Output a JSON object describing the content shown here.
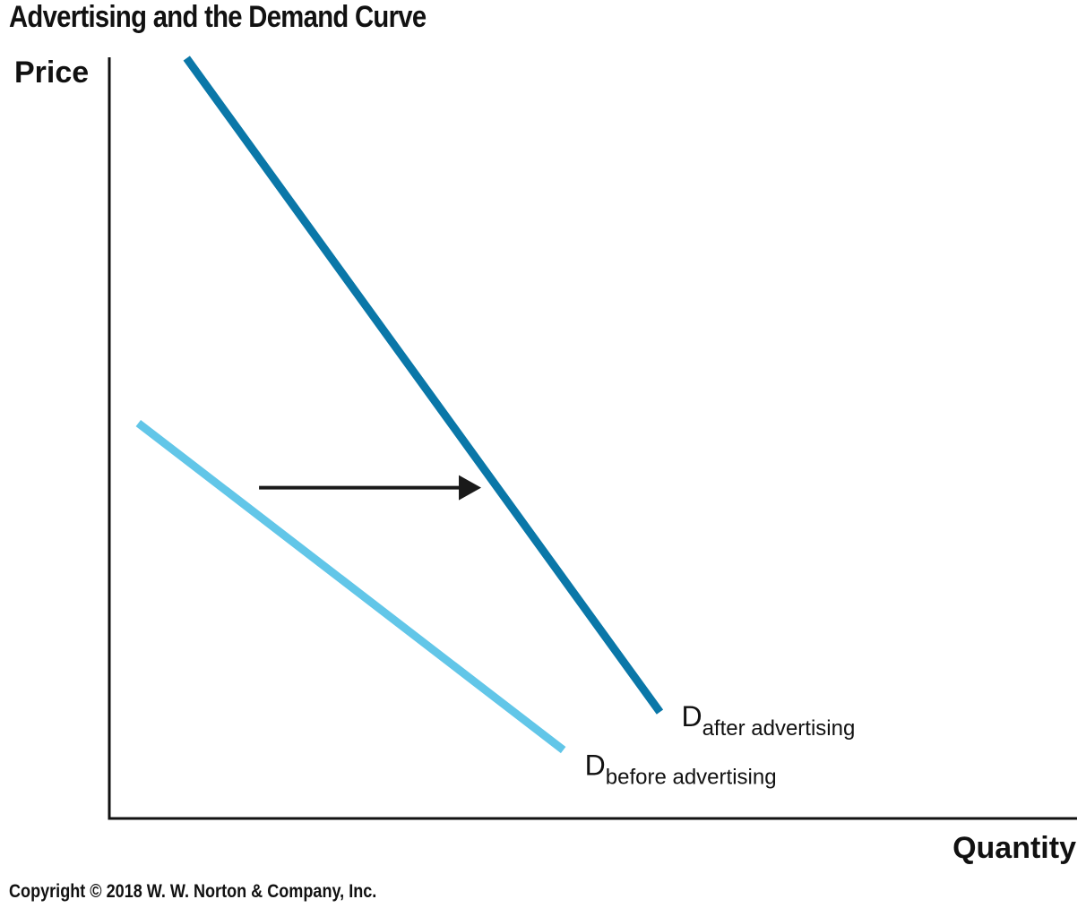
{
  "chart_data": {
    "type": "line",
    "title": "Advertising and the Demand Curve",
    "xlabel": "Quantity",
    "ylabel": "Price",
    "grid": false,
    "series": [
      {
        "name": "D_before advertising",
        "label_main": "D",
        "label_sub": "before advertising",
        "color": "#62c6e8",
        "points": [
          [
            0.03,
            0.52
          ],
          [
            0.47,
            0.09
          ]
        ]
      },
      {
        "name": "D_after advertising",
        "label_main": "D",
        "label_sub": "after advertising",
        "color": "#0a77a8",
        "points": [
          [
            0.08,
            1.0
          ],
          [
            0.57,
            0.14
          ]
        ]
      }
    ],
    "annotations": [
      {
        "type": "arrow",
        "direction": "right",
        "description": "demand shifts right",
        "from": [
          0.155,
          0.435
        ],
        "to": [
          0.385,
          0.435
        ]
      }
    ]
  },
  "copyright": "Copyright © 2018 W. W. Norton & Company, Inc."
}
